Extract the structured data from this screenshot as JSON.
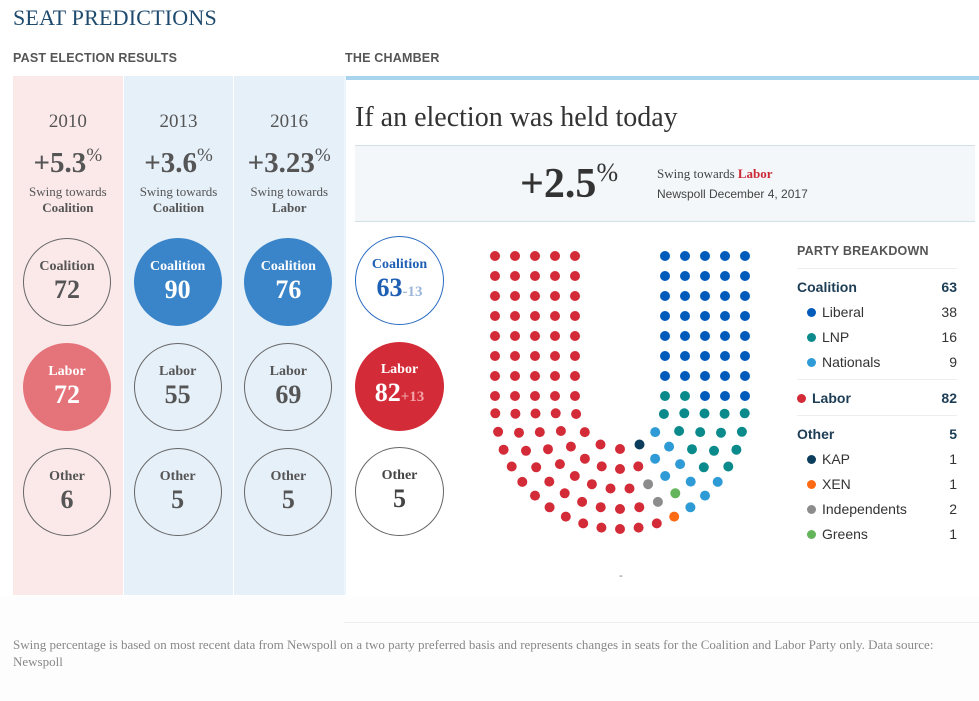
{
  "title": "SEAT PREDICTIONS",
  "past_section_label": "PAST ELECTION RESULTS",
  "chamber_section_label": "THE CHAMBER",
  "past": [
    {
      "year": "2010",
      "swing": "+5.3",
      "swing_unit": "%",
      "swing_text": "Swing towards",
      "swing_party": "Coalition",
      "seats": [
        {
          "party": "Coalition",
          "value": "72"
        },
        {
          "party": "Labor",
          "value": "72"
        },
        {
          "party": "Other",
          "value": "6"
        }
      ]
    },
    {
      "year": "2013",
      "swing": "+3.6",
      "swing_unit": "%",
      "swing_text": "Swing towards",
      "swing_party": "Coalition",
      "seats": [
        {
          "party": "Coalition",
          "value": "90"
        },
        {
          "party": "Labor",
          "value": "55"
        },
        {
          "party": "Other",
          "value": "5"
        }
      ]
    },
    {
      "year": "2016",
      "swing": "+3.23",
      "swing_unit": "%",
      "swing_text": "Swing towards",
      "swing_party": "Labor",
      "seats": [
        {
          "party": "Coalition",
          "value": "76"
        },
        {
          "party": "Labor",
          "value": "69"
        },
        {
          "party": "Other",
          "value": "5"
        }
      ]
    }
  ],
  "chamber": {
    "headline": "If an election was held today",
    "swing": "+2.5",
    "swing_unit": "%",
    "swing_text": "Swing towards",
    "swing_party": "Labor",
    "source_line": "Newspoll December 4, 2017",
    "predictions": [
      {
        "party": "Coalition",
        "value": "63",
        "delta": "-13"
      },
      {
        "party": "Labor",
        "value": "82",
        "delta": "+13"
      },
      {
        "party": "Other",
        "value": "5",
        "delta": ""
      }
    ],
    "dash": "-"
  },
  "breakdown": {
    "title": "PARTY BREAKDOWN",
    "coalition": {
      "label": "Coalition",
      "value": "63",
      "items": [
        {
          "label": "Liberal",
          "value": "38",
          "color": "#005bbb"
        },
        {
          "label": "LNP",
          "value": "16",
          "color": "#0b8a8c"
        },
        {
          "label": "Nationals",
          "value": "9",
          "color": "#2f9bd6"
        }
      ]
    },
    "labor": {
      "label": "Labor",
      "value": "82",
      "color": "#d32b37"
    },
    "other": {
      "label": "Other",
      "value": "5",
      "items": [
        {
          "label": "KAP",
          "value": "1",
          "color": "#0d3d5c"
        },
        {
          "label": "XEN",
          "value": "1",
          "color": "#ff6a13"
        },
        {
          "label": "Independents",
          "value": "2",
          "color": "#8c8c8c"
        },
        {
          "label": "Greens",
          "value": "1",
          "color": "#63b45a"
        }
      ]
    }
  },
  "seat_order": [
    {
      "party": "Labor",
      "count": 82,
      "color": "#d32b37"
    },
    {
      "party": "Independents",
      "count": 2,
      "color": "#8c8c8c"
    },
    {
      "party": "KAP",
      "count": 1,
      "color": "#0d3d5c"
    },
    {
      "party": "XEN",
      "count": 1,
      "color": "#ff6a13"
    },
    {
      "party": "Greens",
      "count": 1,
      "color": "#63b45a"
    },
    {
      "party": "Nationals",
      "count": 9,
      "color": "#2f9bd6"
    },
    {
      "party": "LNP",
      "count": 16,
      "color": "#0b8a8c"
    },
    {
      "party": "Liberal",
      "count": 38,
      "color": "#005bbb"
    }
  ],
  "footer": "Swing percentage is based on most recent data from Newspoll on a two party preferred basis and represents changes in seats for the Coalition and Labor Party only. Data source: Newspoll"
}
